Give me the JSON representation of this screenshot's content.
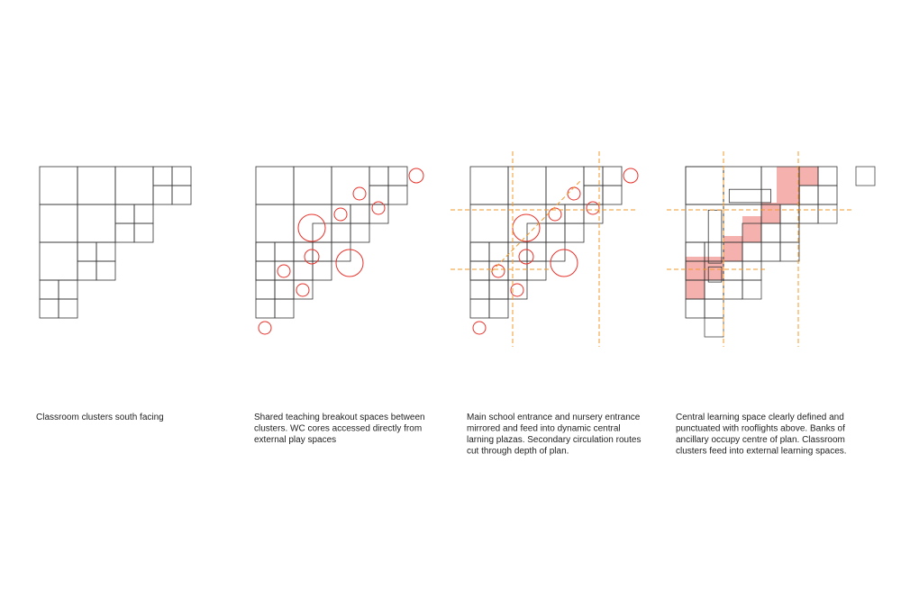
{
  "panels": [
    {
      "caption": [
        "Classroom clusters south facing"
      ]
    },
    {
      "caption": [
        "Shared teaching breakout spaces between",
        "clusters. WC cores accessed directly from",
        "external play spaces"
      ]
    },
    {
      "caption": [
        "Main school entrance and nursery entrance",
        "mirrored and feed into dynamic central",
        "larning plazas. Secondary circulation routes",
        "cut through depth of plan."
      ]
    },
    {
      "caption": [
        "Central learning space clearly defined and",
        "punctuated with rooflights above. Banks of",
        "ancillary occupy centre of plan. Classroom",
        "clusters feed into external learning spaces."
      ]
    }
  ]
}
